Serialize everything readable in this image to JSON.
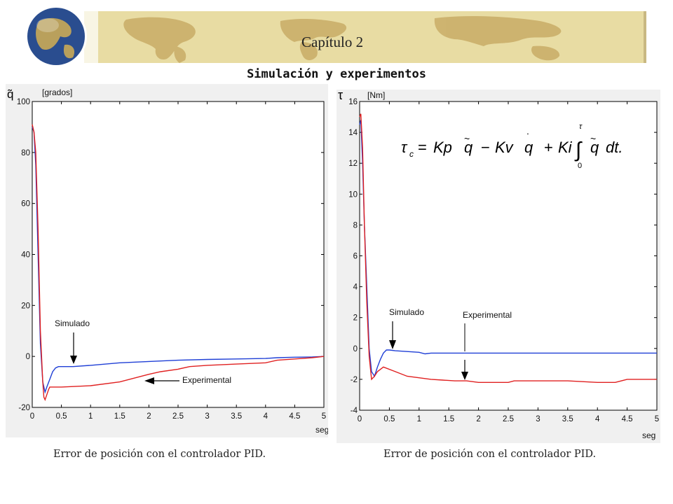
{
  "header": {
    "chapter": "Capítulo 2",
    "section": "Simulación y experimentos",
    "colors": {
      "banner": "#e8dca3",
      "land": "#c9ad67",
      "globe": "#2a4d8f"
    },
    "icons": [
      "globe-icon",
      "world-map"
    ]
  },
  "captions": {
    "left": "Error de posición con el controlador PID.",
    "right": "Error de posición con el controlador PID."
  },
  "equation": "τc = Kp q̃ − Kv q̇ + Ki ∫₀^τ q̃ dt.",
  "chart_data": [
    {
      "type": "line",
      "ysymbol": "q̃",
      "ylabel": "[grados]",
      "xlabel": "seg",
      "xlim": [
        0,
        5
      ],
      "ylim": [
        -20,
        100
      ],
      "xticks": [
        "0",
        "0.5",
        "1",
        "1.5",
        "2",
        "2.5",
        "3",
        "3.5",
        "4",
        "4.5",
        "5"
      ],
      "yticks": [
        "-20",
        "0",
        "20",
        "40",
        "60",
        "80",
        "100"
      ],
      "grid": false,
      "series": [
        {
          "name": "Simulado",
          "color": "#1f3fd6",
          "x": [
            0,
            0.03,
            0.06,
            0.1,
            0.14,
            0.18,
            0.22,
            0.25,
            0.3,
            0.35,
            0.4,
            0.45,
            0.5,
            0.7,
            1.0,
            1.5,
            2.0,
            2.5,
            3.0,
            3.5,
            4.0,
            4.2,
            4.5,
            4.8,
            5.0
          ],
          "y": [
            90,
            88,
            75,
            40,
            5,
            -10,
            -14,
            -12,
            -9,
            -6,
            -4.5,
            -4,
            -4,
            -4,
            -3.5,
            -2.5,
            -2,
            -1.5,
            -1.2,
            -1,
            -0.8,
            -0.5,
            -0.3,
            -0.2,
            0
          ]
        },
        {
          "name": "Experimental",
          "color": "#e02020",
          "x": [
            0,
            0.03,
            0.06,
            0.1,
            0.14,
            0.18,
            0.2,
            0.22,
            0.25,
            0.28,
            0.3,
            0.35,
            0.5,
            1.0,
            1.5,
            2.0,
            2.2,
            2.5,
            2.7,
            3.0,
            3.5,
            4.0,
            4.2,
            4.5,
            4.8,
            5.0
          ],
          "y": [
            91,
            88,
            80,
            50,
            10,
            -10,
            -16,
            -17,
            -15,
            -13,
            -12,
            -12,
            -12,
            -11.5,
            -10,
            -7,
            -6,
            -5,
            -4,
            -3.5,
            -3,
            -2.5,
            -1.5,
            -1,
            -0.5,
            0
          ]
        }
      ],
      "annotations": [
        {
          "text": "Simulado",
          "x": 0.35,
          "y": 12
        },
        {
          "text": "Experimental",
          "x": 2.6,
          "y": -9
        }
      ]
    },
    {
      "type": "line",
      "ysymbol": "τ",
      "ylabel": "[Nm]",
      "xlabel": "seg",
      "xlim": [
        0,
        5
      ],
      "ylim": [
        -4,
        16
      ],
      "xticks": [
        "0",
        "0.5",
        "1",
        "1.5",
        "2",
        "2.5",
        "3",
        "3.5",
        "4",
        "4.5",
        "5"
      ],
      "yticks": [
        "-4",
        "-2",
        "0",
        "2",
        "4",
        "6",
        "8",
        "10",
        "12",
        "14",
        "16"
      ],
      "grid": false,
      "series": [
        {
          "name": "Simulado",
          "color": "#1f3fd6",
          "x": [
            0,
            0.02,
            0.05,
            0.08,
            0.12,
            0.16,
            0.2,
            0.25,
            0.3,
            0.35,
            0.4,
            0.45,
            0.5,
            0.6,
            0.8,
            1.0,
            1.1,
            1.2,
            1.5,
            2.0,
            3.0,
            4.0,
            5.0
          ],
          "y": [
            14.5,
            14.8,
            12,
            8,
            4,
            0,
            -1.5,
            -1.8,
            -1.2,
            -0.7,
            -0.3,
            -0.1,
            -0.1,
            -0.15,
            -0.2,
            -0.25,
            -0.35,
            -0.3,
            -0.3,
            -0.3,
            -0.3,
            -0.3,
            -0.3
          ]
        },
        {
          "name": "Experimental",
          "color": "#e02020",
          "x": [
            0,
            0.02,
            0.05,
            0.08,
            0.12,
            0.16,
            0.2,
            0.25,
            0.3,
            0.4,
            0.6,
            0.8,
            1.0,
            1.2,
            1.4,
            1.6,
            1.8,
            2.0,
            2.5,
            2.6,
            3.0,
            3.5,
            4.0,
            4.3,
            4.5,
            5.0
          ],
          "y": [
            15,
            15.2,
            13,
            8,
            3,
            -0.5,
            -2,
            -1.8,
            -1.5,
            -1.2,
            -1.5,
            -1.8,
            -1.9,
            -2.0,
            -2.05,
            -2.1,
            -2.1,
            -2.2,
            -2.2,
            -2.1,
            -2.1,
            -2.1,
            -2.2,
            -2.2,
            -2.0,
            -2.0
          ]
        }
      ],
      "annotations": [
        {
          "text": "Simulado",
          "x": 0.5,
          "y": 2.2
        },
        {
          "text": "Experimental",
          "x": 1.75,
          "y": 2.0
        }
      ]
    }
  ]
}
